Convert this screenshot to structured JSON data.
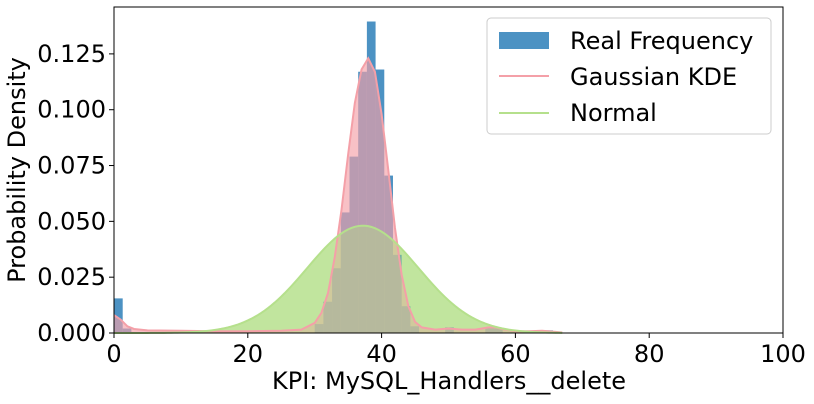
{
  "chart_data": {
    "type": "bar",
    "title": "",
    "xlabel": "KPI: MySQL_Handlers__delete",
    "ylabel": "Probability Density",
    "xlim": [
      0,
      100
    ],
    "ylim": [
      0,
      0.146
    ],
    "xticks": [
      0,
      20,
      40,
      60,
      80,
      100
    ],
    "yticks": [
      0.0,
      0.025,
      0.05,
      0.075,
      0.1,
      0.125
    ],
    "xtick_labels": [
      "0",
      "20",
      "40",
      "60",
      "80",
      "100"
    ],
    "ytick_labels": [
      "0.000",
      "0.025",
      "0.050",
      "0.075",
      "0.100",
      "0.125"
    ],
    "grid": false,
    "legend_position": "top-right",
    "histogram": {
      "name": "Real Frequency",
      "color": "#1f77b4",
      "bins": [
        {
          "x0": 0.0,
          "x1": 1.3,
          "y": 0.0155
        },
        {
          "x0": 1.3,
          "x1": 2.6,
          "y": 0.002
        },
        {
          "x0": 30.0,
          "x1": 31.3,
          "y": 0.004
        },
        {
          "x0": 31.3,
          "x1": 32.6,
          "y": 0.014
        },
        {
          "x0": 32.6,
          "x1": 33.9,
          "y": 0.029
        },
        {
          "x0": 33.9,
          "x1": 35.2,
          "y": 0.054
        },
        {
          "x0": 35.2,
          "x1": 36.5,
          "y": 0.079
        },
        {
          "x0": 36.5,
          "x1": 37.8,
          "y": 0.117
        },
        {
          "x0": 37.8,
          "x1": 39.1,
          "y": 0.1395
        },
        {
          "x0": 39.1,
          "x1": 40.4,
          "y": 0.118
        },
        {
          "x0": 40.4,
          "x1": 41.7,
          "y": 0.0705
        },
        {
          "x0": 41.7,
          "x1": 43.0,
          "y": 0.035
        },
        {
          "x0": 43.0,
          "x1": 44.3,
          "y": 0.012
        },
        {
          "x0": 44.3,
          "x1": 45.6,
          "y": 0.003
        },
        {
          "x0": 49.5,
          "x1": 50.8,
          "y": 0.0025
        },
        {
          "x0": 55.5,
          "x1": 56.8,
          "y": 0.0025
        },
        {
          "x0": 56.8,
          "x1": 58.1,
          "y": 0.002
        },
        {
          "x0": 63.0,
          "x1": 64.3,
          "y": 0.0012
        },
        {
          "x0": 64.3,
          "x1": 65.6,
          "y": 0.0012
        }
      ]
    },
    "series": [
      {
        "name": "Gaussian KDE",
        "color": "#f4a0a8",
        "x": [
          0,
          1,
          2,
          3,
          5,
          10,
          15,
          20,
          25,
          28,
          30,
          31,
          32,
          33,
          34,
          35,
          36,
          37,
          38,
          39,
          40,
          41,
          42,
          43,
          44,
          45,
          46,
          48,
          50,
          52,
          54,
          56,
          57,
          58,
          60,
          62,
          64,
          66,
          67
        ],
        "y": [
          0.008,
          0.006,
          0.003,
          0.0018,
          0.0012,
          0.001,
          0.0008,
          0.0008,
          0.001,
          0.0015,
          0.0045,
          0.009,
          0.018,
          0.034,
          0.055,
          0.08,
          0.103,
          0.118,
          0.123,
          0.117,
          0.098,
          0.073,
          0.047,
          0.026,
          0.012,
          0.005,
          0.0025,
          0.0015,
          0.002,
          0.0015,
          0.0015,
          0.0025,
          0.0025,
          0.0018,
          0.0008,
          0.0008,
          0.001,
          0.0005,
          0.0002
        ]
      },
      {
        "name": "Normal",
        "color": "#b5e08c",
        "mean": 37.2,
        "std": 8.3,
        "x_range": [
          0,
          67
        ]
      }
    ]
  }
}
